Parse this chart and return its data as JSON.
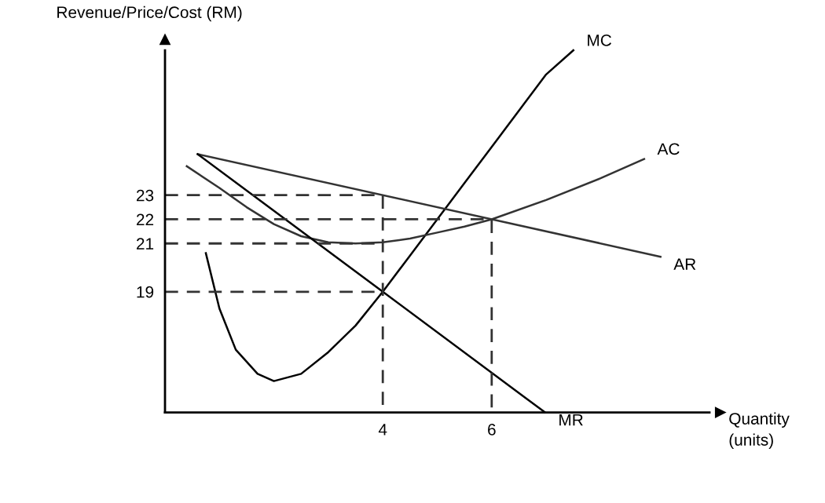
{
  "chart_data": {
    "type": "line",
    "xlabel": "Quantity\n(units)",
    "ylabel": "Revenue/Price/Cost (RM)",
    "xlim": [
      0,
      10
    ],
    "ylim": [
      14,
      29
    ],
    "xticks": [
      4,
      6
    ],
    "yticks": [
      19,
      21,
      22,
      23
    ],
    "grid": false,
    "legend": false,
    "marker": "none",
    "line_style": "solid",
    "series": [
      {
        "name": "MC",
        "color": "#000000",
        "x": [
          0.75,
          1.0,
          1.3,
          1.7,
          2.0,
          2.5,
          3.0,
          3.5,
          4.0,
          4.5,
          5.0,
          5.5,
          6.0,
          6.5,
          7.0,
          7.5
        ],
        "values": [
          20.6,
          18.3,
          16.6,
          15.6,
          15.3,
          15.6,
          16.5,
          17.6,
          19.0,
          20.5,
          22.0,
          23.5,
          25.0,
          26.5,
          28.0,
          29.0
        ]
      },
      {
        "name": "AC",
        "color": "#333333",
        "x": [
          0.4,
          1.0,
          1.5,
          2.0,
          2.5,
          3.0,
          3.5,
          4.0,
          4.5,
          5.0,
          5.5,
          6.0,
          7.0,
          8.0,
          8.8
        ],
        "values": [
          24.2,
          23.3,
          22.5,
          21.8,
          21.3,
          21.05,
          21.0,
          21.05,
          21.2,
          21.45,
          21.7,
          22.0,
          22.8,
          23.7,
          24.5
        ]
      },
      {
        "name": "AR",
        "color": "#333333",
        "x": [
          0.6,
          9.1
        ],
        "values": [
          24.7,
          20.45
        ]
      },
      {
        "name": "MR",
        "color": "#000000",
        "x": [
          0.6,
          4.0,
          6.98
        ],
        "values": [
          24.7,
          19.0,
          14.0
        ]
      },
      {
        "color": "#333333",
        "line_style": "dashed",
        "x": [
          0,
          4,
          4
        ],
        "values": [
          23,
          23,
          14
        ]
      },
      {
        "color": "#333333",
        "line_style": "dashed",
        "x": [
          0,
          6,
          6
        ],
        "values": [
          22,
          22,
          14
        ]
      },
      {
        "color": "#333333",
        "line_style": "dashed",
        "x": [
          0,
          4
        ],
        "values": [
          21,
          21
        ]
      },
      {
        "color": "#333333",
        "line_style": "dashed",
        "x": [
          0,
          4
        ],
        "values": [
          19,
          19
        ]
      }
    ]
  }
}
